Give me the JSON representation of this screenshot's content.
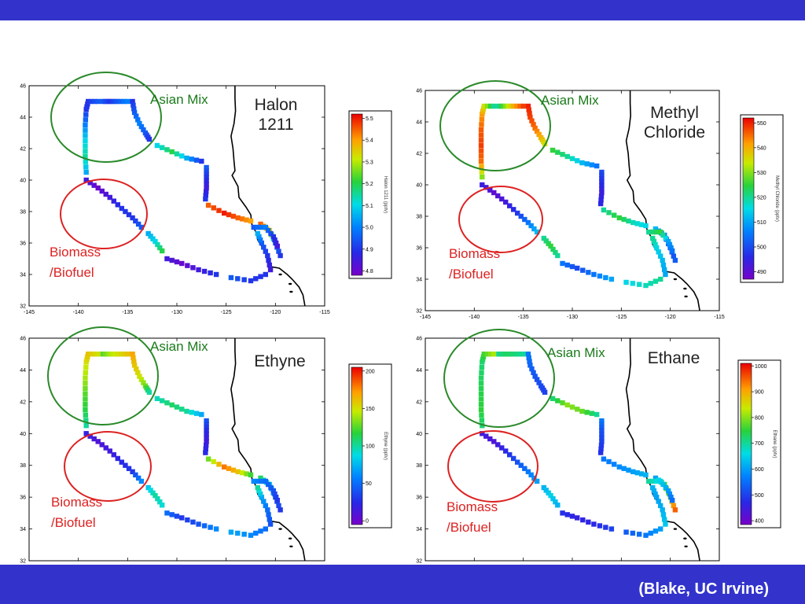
{
  "credit": "(Blake, UC Irvine)",
  "colors": {
    "frame": "#3333cc",
    "asian_circle": "#2a8a2a",
    "biomass_circle": "#dd2222",
    "coast": "#000000"
  },
  "chart_data": [
    {
      "type": "scatter",
      "title_lines": [
        "Halon",
        "1211"
      ],
      "xlim": [
        -145,
        -115
      ],
      "ylim": [
        32,
        46
      ],
      "xticks": [
        "-145",
        "-140",
        "-135",
        "-130",
        "-125",
        "-120",
        "-115"
      ],
      "yticks": [
        "32",
        "34",
        "36",
        "38",
        "40",
        "42",
        "44",
        "46"
      ],
      "colorbar": {
        "label": "Halon 1211 (pptv)",
        "min": 4.78,
        "max": 5.52,
        "ticks": [
          "4.8",
          "4.9",
          "5.0",
          "5.1",
          "5.2",
          "5.3",
          "5.4",
          "5.5"
        ],
        "tick_values": [
          4.8,
          4.9,
          5.0,
          5.1,
          5.2,
          5.3,
          5.4,
          5.5
        ]
      },
      "annotations": {
        "asian_mix": "Asian Mix",
        "biomass_line1": "Biomass",
        "biomass_line2": "/Biofuel"
      },
      "segment_values": [
        [
          5.05,
          5.15,
          5.1,
          5.0,
          4.9,
          4.9,
          4.95
        ],
        [
          4.95,
          4.9,
          4.95,
          5.0
        ],
        [
          4.9,
          4.95,
          5.0,
          4.95,
          4.9
        ],
        [
          5.1,
          5.2,
          5.05,
          4.9
        ],
        [
          4.95,
          4.9,
          4.85,
          4.9
        ],
        [
          4.85,
          4.8,
          4.85,
          4.9,
          4.9,
          4.95
        ],
        [
          5.05,
          5.1,
          5.2
        ],
        [
          4.85,
          4.8,
          4.85,
          4.9
        ],
        [
          4.95,
          4.9,
          4.9
        ],
        [
          4.85,
          4.9,
          4.95,
          5.05
        ],
        [
          5.45,
          5.5,
          5.45,
          5.4
        ],
        [
          5.45,
          5.35,
          5.0,
          4.9
        ],
        [
          4.95,
          5.0,
          4.9,
          4.85
        ]
      ]
    },
    {
      "type": "scatter",
      "title_lines": [
        "Methyl",
        "Chloride"
      ],
      "xlim": [
        -145,
        -115
      ],
      "ylim": [
        32,
        46
      ],
      "xticks": [
        "-145",
        "-140",
        "-135",
        "-130",
        "-125",
        "-120",
        "-115"
      ],
      "yticks": [
        "32",
        "34",
        "36",
        "38",
        "40",
        "42",
        "44",
        "46"
      ],
      "colorbar": {
        "label": "Methyl Chloride (pptv)",
        "min": 487,
        "max": 552,
        "ticks": [
          "490",
          "500",
          "510",
          "520",
          "530",
          "540",
          "550"
        ],
        "tick_values": [
          490,
          500,
          510,
          520,
          530,
          540,
          550
        ]
      },
      "annotations": {
        "asian_mix": "Asian Mix",
        "biomass_line1": "Biomass",
        "biomass_line2": "/Biofuel"
      },
      "segment_values": [
        [
          530,
          545,
          548,
          546,
          542,
          535,
          520
        ],
        [
          520,
          530,
          540,
          548
        ],
        [
          550,
          548,
          545,
          540,
          535
        ],
        [
          525,
          520,
          512,
          505
        ],
        [
          500,
          497,
          494,
          496
        ],
        [
          494,
          490,
          493,
          498,
          505,
          512
        ],
        [
          520,
          525,
          520
        ],
        [
          505,
          500,
          505,
          510
        ],
        [
          515,
          518,
          520
        ],
        [
          510,
          512,
          515,
          520
        ],
        [
          520,
          525,
          518,
          515
        ],
        [
          512,
          505,
          500,
          502
        ],
        [
          520,
          525,
          510,
          505
        ]
      ]
    },
    {
      "type": "scatter",
      "title_lines": [
        "Ethyne"
      ],
      "xlim": [
        -145,
        -115
      ],
      "ylim": [
        32,
        46
      ],
      "xticks": [
        "-145",
        "-140",
        "-135",
        "-130",
        "-125",
        "-120",
        "-115"
      ],
      "yticks": [
        "32",
        "34",
        "36",
        "38",
        "40",
        "42",
        "44",
        "46"
      ],
      "colorbar": {
        "label": "Ethyne (pptv)",
        "min": -5,
        "max": 205,
        "ticks": [
          "0",
          "50",
          "100",
          "150",
          "200"
        ],
        "tick_values": [
          0,
          50,
          100,
          150,
          200
        ]
      },
      "annotations": {
        "asian_mix": "Asian Mix",
        "biomass_line1": "Biomass",
        "biomass_line2": "/Biofuel"
      },
      "segment_values": [
        [
          100,
          115,
          125,
          140,
          150,
          160,
          150
        ],
        [
          125,
          140,
          150,
          160
        ],
        [
          170,
          160,
          150,
          130,
          100
        ],
        [
          95,
          110,
          100,
          70
        ],
        [
          40,
          25,
          15,
          25
        ],
        [
          20,
          10,
          15,
          25,
          30,
          60
        ],
        [
          80,
          100,
          90
        ],
        [
          50,
          30,
          40,
          60
        ],
        [
          70,
          60,
          50
        ],
        [
          40,
          50,
          70,
          100
        ],
        [
          130,
          180,
          160,
          120
        ],
        [
          110,
          80,
          50,
          30
        ],
        [
          60,
          50,
          40,
          30
        ]
      ]
    },
    {
      "type": "scatter",
      "title_lines": [
        "Ethane"
      ],
      "xlim": [
        -145,
        -115
      ],
      "ylim": [
        32,
        46
      ],
      "xticks": [
        "-145",
        "-140",
        "-135",
        "-130",
        "-125",
        "-120",
        "-115"
      ],
      "yticks": [
        "32",
        "34",
        "36",
        "38",
        "40",
        "42",
        "44",
        "46"
      ],
      "colorbar": {
        "label": "Ethane (pptv)",
        "min": 385,
        "max": 1010,
        "ticks": [
          "400",
          "500",
          "600",
          "700",
          "800",
          "900",
          "1000"
        ],
        "tick_values": [
          400,
          500,
          600,
          700,
          800,
          900,
          1000
        ]
      },
      "annotations": {
        "asian_mix": "Asian Mix",
        "biomass_line1": "Biomass",
        "biomass_line2": "/Biofuel"
      },
      "segment_values": [
        [
          720,
          750,
          740,
          730,
          720,
          760,
          820
        ],
        [
          700,
          730,
          720,
          700
        ],
        [
          560,
          540,
          520,
          510,
          500
        ],
        [
          720,
          800,
          780,
          700
        ],
        [
          560,
          520,
          500,
          480
        ],
        [
          450,
          430,
          470,
          520,
          560,
          600
        ],
        [
          620,
          650,
          620
        ],
        [
          480,
          460,
          470,
          500
        ],
        [
          530,
          560,
          600
        ],
        [
          640,
          620,
          600,
          620
        ],
        [
          560,
          580,
          600,
          620
        ],
        [
          600,
          750,
          850,
          950
        ],
        [
          700,
          650,
          600,
          550
        ]
      ]
    }
  ]
}
